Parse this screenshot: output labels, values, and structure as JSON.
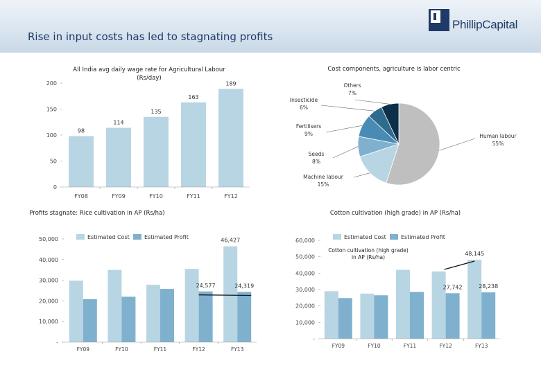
{
  "page": {
    "title": "Rise in input costs has led to stagnating profits",
    "logo_text": "PhillipCapital",
    "accent": "#1f3a68"
  },
  "chart_data": [
    {
      "type": "bar",
      "title": "All India avg daily wage rate for Agricultural Labour (Rs/day)",
      "categories": [
        "FY08",
        "FY09",
        "FY10",
        "FY11",
        "FY12"
      ],
      "values": [
        98,
        114,
        135,
        163,
        189
      ],
      "ylim": [
        0,
        200
      ],
      "yticks": [
        "0",
        "50",
        "100",
        "150",
        "200"
      ],
      "color": "#b8d5e4"
    },
    {
      "type": "pie",
      "title": "Cost components, agriculture is labor centric",
      "slices": [
        {
          "label": "Human labour",
          "value": 55,
          "text": "55%",
          "color": "#bfbfbf"
        },
        {
          "label": "Machine labour",
          "value": 15,
          "text": "15%",
          "color": "#b8d5e4"
        },
        {
          "label": "Seeds",
          "value": 8,
          "text": "8%",
          "color": "#7fb1cf"
        },
        {
          "label": "Fertilisers",
          "value": 9,
          "text": "9%",
          "color": "#4a8bb5"
        },
        {
          "label": "Insecticide",
          "value": 6,
          "text": "6%",
          "color": "#2f6b8f"
        },
        {
          "label": "Others",
          "value": 7,
          "text": "7%",
          "color": "#0c2f4a"
        }
      ]
    },
    {
      "type": "bar",
      "title": "Profits stagnate: Rice cultivation in AP (Rs/ha)",
      "categories": [
        "FY09",
        "FY10",
        "FY11",
        "FY12",
        "FY13"
      ],
      "ylim": [
        0,
        50000
      ],
      "yticks": [
        "-",
        "10,000",
        "20,000",
        "30,000",
        "40,000",
        "50,000"
      ],
      "series": [
        {
          "name": "Estimated Cost",
          "values": [
            29800,
            35000,
            27800,
            35500,
            46427
          ],
          "color": "#b8d5e4"
        },
        {
          "name": "Estimated Profit",
          "values": [
            20800,
            22000,
            25800,
            24577,
            24319
          ],
          "color": "#7fb1cf"
        }
      ],
      "annotations": [
        {
          "series": 0,
          "index": 4,
          "text": "46,427"
        },
        {
          "series": 1,
          "index": 3,
          "text": "24,577"
        },
        {
          "series": 1,
          "index": 4,
          "text": "24,319"
        }
      ]
    },
    {
      "type": "bar",
      "title": "Cotton cultivation (high grade) in AP (Rs/ha)",
      "subtitle": "Cotton cultivation (high grade) in AP (Rs/ha)",
      "categories": [
        "FY09",
        "FY10",
        "FY11",
        "FY12",
        "FY13"
      ],
      "ylim": [
        0,
        60000
      ],
      "yticks": [
        "-",
        "10,000",
        "20,000",
        "30,000",
        "40,000",
        "50,000",
        "60,000"
      ],
      "series": [
        {
          "name": "Estimated Cost",
          "values": [
            29000,
            27500,
            42000,
            41000,
            48145
          ],
          "color": "#b8d5e4"
        },
        {
          "name": "Estimated Profit",
          "values": [
            24800,
            26500,
            28500,
            27742,
            28238
          ],
          "color": "#7fb1cf"
        }
      ],
      "annotations": [
        {
          "series": 0,
          "index": 4,
          "text": "48,145"
        },
        {
          "series": 1,
          "index": 3,
          "text": "27,742"
        },
        {
          "series": 1,
          "index": 4,
          "text": "28,238"
        }
      ]
    }
  ]
}
